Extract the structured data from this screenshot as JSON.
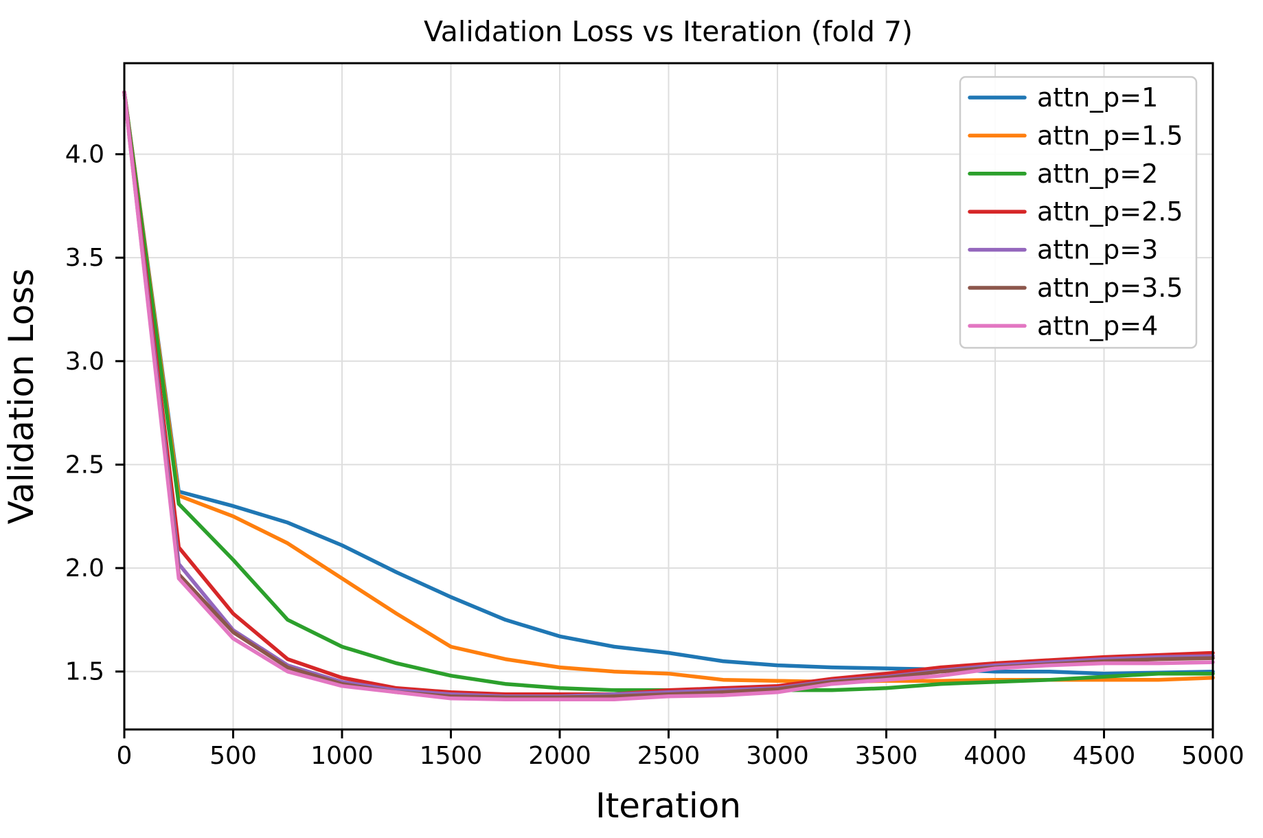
{
  "chart_data": {
    "type": "line",
    "title": "Validation Loss vs Iteration (fold 7)",
    "xlabel": "Iteration",
    "ylabel": "Validation Loss",
    "grid": true,
    "legend_position": "upper right",
    "xlim": [
      0,
      5000
    ],
    "ylim": [
      1.22,
      4.44
    ],
    "xticks": [
      "0",
      "500",
      "1000",
      "1500",
      "2000",
      "2500",
      "3000",
      "3500",
      "4000",
      "4500",
      "5000"
    ],
    "xtick_values": [
      0,
      500,
      1000,
      1500,
      2000,
      2500,
      3000,
      3500,
      4000,
      4500,
      5000
    ],
    "yticks": [
      "1.5",
      "2.0",
      "2.5",
      "3.0",
      "3.5",
      "4.0"
    ],
    "ytick_values": [
      1.5,
      2.0,
      2.5,
      3.0,
      3.5,
      4.0
    ],
    "x": [
      0,
      250,
      500,
      750,
      1000,
      1250,
      1500,
      1750,
      2000,
      2250,
      2500,
      2750,
      3000,
      3250,
      3500,
      3750,
      4000,
      4250,
      4500,
      4750,
      5000
    ],
    "series": [
      {
        "name": "attn_p=1",
        "color": "#1f77b4",
        "values": [
          4.3,
          2.37,
          2.3,
          2.22,
          2.11,
          1.98,
          1.86,
          1.75,
          1.67,
          1.62,
          1.59,
          1.55,
          1.53,
          1.52,
          1.515,
          1.51,
          1.5,
          1.5,
          1.49,
          1.495,
          1.5
        ]
      },
      {
        "name": "attn_p=1.5",
        "color": "#ff7f0e",
        "values": [
          4.3,
          2.35,
          2.25,
          2.12,
          1.95,
          1.78,
          1.62,
          1.56,
          1.52,
          1.5,
          1.49,
          1.46,
          1.455,
          1.45,
          1.455,
          1.455,
          1.46,
          1.46,
          1.46,
          1.46,
          1.47
        ]
      },
      {
        "name": "attn_p=2",
        "color": "#2ca02c",
        "values": [
          4.3,
          2.31,
          2.04,
          1.75,
          1.62,
          1.54,
          1.48,
          1.44,
          1.42,
          1.41,
          1.41,
          1.41,
          1.41,
          1.41,
          1.42,
          1.44,
          1.45,
          1.46,
          1.475,
          1.49,
          1.49
        ]
      },
      {
        "name": "attn_p=2.5",
        "color": "#d62728",
        "values": [
          4.3,
          2.1,
          1.78,
          1.56,
          1.47,
          1.42,
          1.4,
          1.39,
          1.39,
          1.39,
          1.41,
          1.42,
          1.43,
          1.465,
          1.49,
          1.52,
          1.54,
          1.555,
          1.57,
          1.58,
          1.59
        ]
      },
      {
        "name": "attn_p=3",
        "color": "#9467bd",
        "values": [
          4.3,
          2.02,
          1.7,
          1.53,
          1.45,
          1.41,
          1.39,
          1.38,
          1.38,
          1.39,
          1.4,
          1.41,
          1.42,
          1.455,
          1.475,
          1.505,
          1.53,
          1.545,
          1.56,
          1.57,
          1.575
        ]
      },
      {
        "name": "attn_p=3.5",
        "color": "#8c564b",
        "values": [
          4.3,
          1.97,
          1.69,
          1.52,
          1.44,
          1.4,
          1.38,
          1.375,
          1.375,
          1.38,
          1.39,
          1.4,
          1.415,
          1.45,
          1.47,
          1.5,
          1.52,
          1.535,
          1.55,
          1.56,
          1.565
        ]
      },
      {
        "name": "attn_p=4",
        "color": "#e377c2",
        "values": [
          4.3,
          1.95,
          1.66,
          1.5,
          1.43,
          1.4,
          1.37,
          1.365,
          1.365,
          1.365,
          1.38,
          1.385,
          1.4,
          1.44,
          1.46,
          1.48,
          1.515,
          1.53,
          1.54,
          1.54,
          1.545
        ]
      }
    ],
    "colors": {
      "background": "#ffffff",
      "grid": "#dedede",
      "spine": "#000000",
      "legend_border": "#cccccc",
      "legend_fill": "#ffffff"
    }
  }
}
